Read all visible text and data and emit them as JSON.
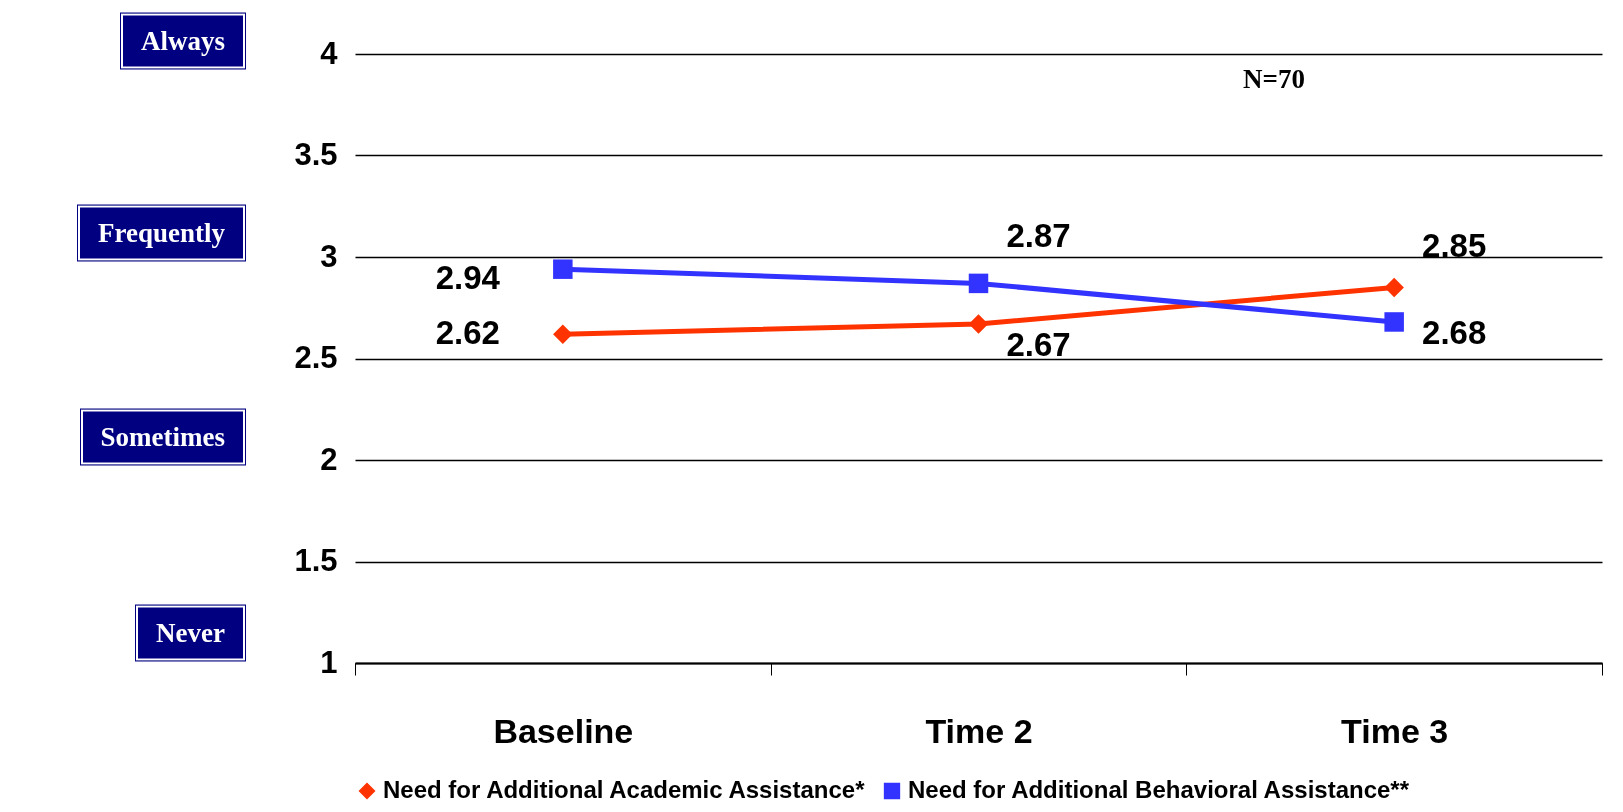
{
  "chart_data": {
    "type": "line",
    "categories": [
      "Baseline",
      "Time 2",
      "Time 3"
    ],
    "series": [
      {
        "name": "Need for Additional Academic Assistance*",
        "color": "#ff3300",
        "marker": "diamond",
        "values": [
          2.62,
          2.67,
          2.85
        ]
      },
      {
        "name": "Need for Additional Behavioral Assistance**",
        "color": "#3333ff",
        "marker": "square",
        "values": [
          2.94,
          2.87,
          2.68
        ]
      }
    ],
    "ylim": [
      1,
      4
    ],
    "yticks": [
      1,
      1.5,
      2,
      2.5,
      3,
      3.5,
      4
    ],
    "grid": "y",
    "legend": "bottom",
    "data_labels": true,
    "annotations": [
      "Always",
      "Frequently",
      "Sometimes",
      "Never",
      "N=70"
    ]
  }
}
